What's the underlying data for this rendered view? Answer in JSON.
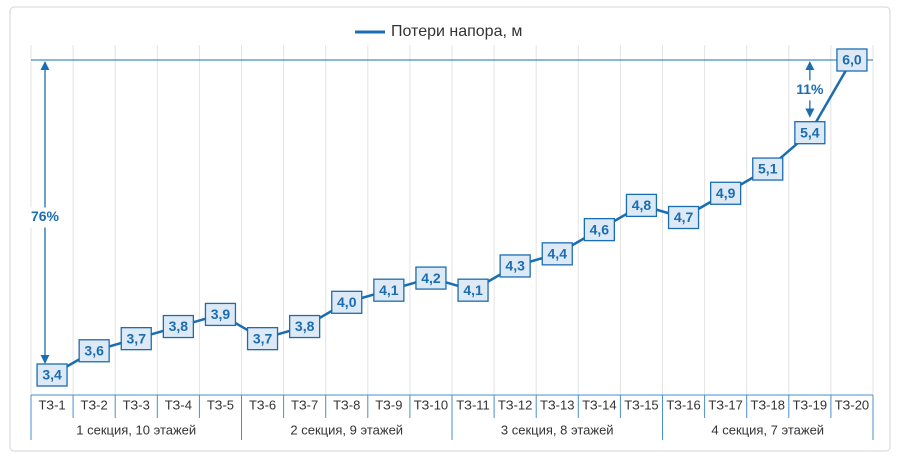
{
  "chart_data": {
    "type": "line",
    "categories": [
      "ТЗ-1",
      "ТЗ-2",
      "ТЗ-3",
      "ТЗ-4",
      "ТЗ-5",
      "ТЗ-6",
      "ТЗ-7",
      "ТЗ-8",
      "ТЗ-9",
      "ТЗ-10",
      "ТЗ-11",
      "ТЗ-12",
      "ТЗ-13",
      "ТЗ-14",
      "ТЗ-15",
      "ТЗ-16",
      "ТЗ-17",
      "ТЗ-18",
      "ТЗ-19",
      "ТЗ-20"
    ],
    "series": [
      {
        "name": "Потери напора, м",
        "color": "#1b6db2",
        "values": [
          3.4,
          3.6,
          3.7,
          3.8,
          3.9,
          3.7,
          3.8,
          4.0,
          4.1,
          4.2,
          4.1,
          4.3,
          4.4,
          4.6,
          4.8,
          4.7,
          4.9,
          5.1,
          5.4,
          6.0
        ],
        "value_labels": [
          "3,4",
          "3,6",
          "3,7",
          "3,8",
          "3,9",
          "3,7",
          "3,8",
          "4,0",
          "4,1",
          "4,2",
          "4,1",
          "4,3",
          "4,4",
          "4,6",
          "4,8",
          "4,7",
          "4,9",
          "5,1",
          "5,4",
          "6,0"
        ]
      }
    ],
    "groups": [
      "1 секция, 10 этажей",
      "2 секция, 9 этажей",
      "3 секция, 8 этажей",
      "4 секция, 7 этажей"
    ],
    "annotations": [
      "76%",
      "11%"
    ],
    "legend": "top"
  }
}
